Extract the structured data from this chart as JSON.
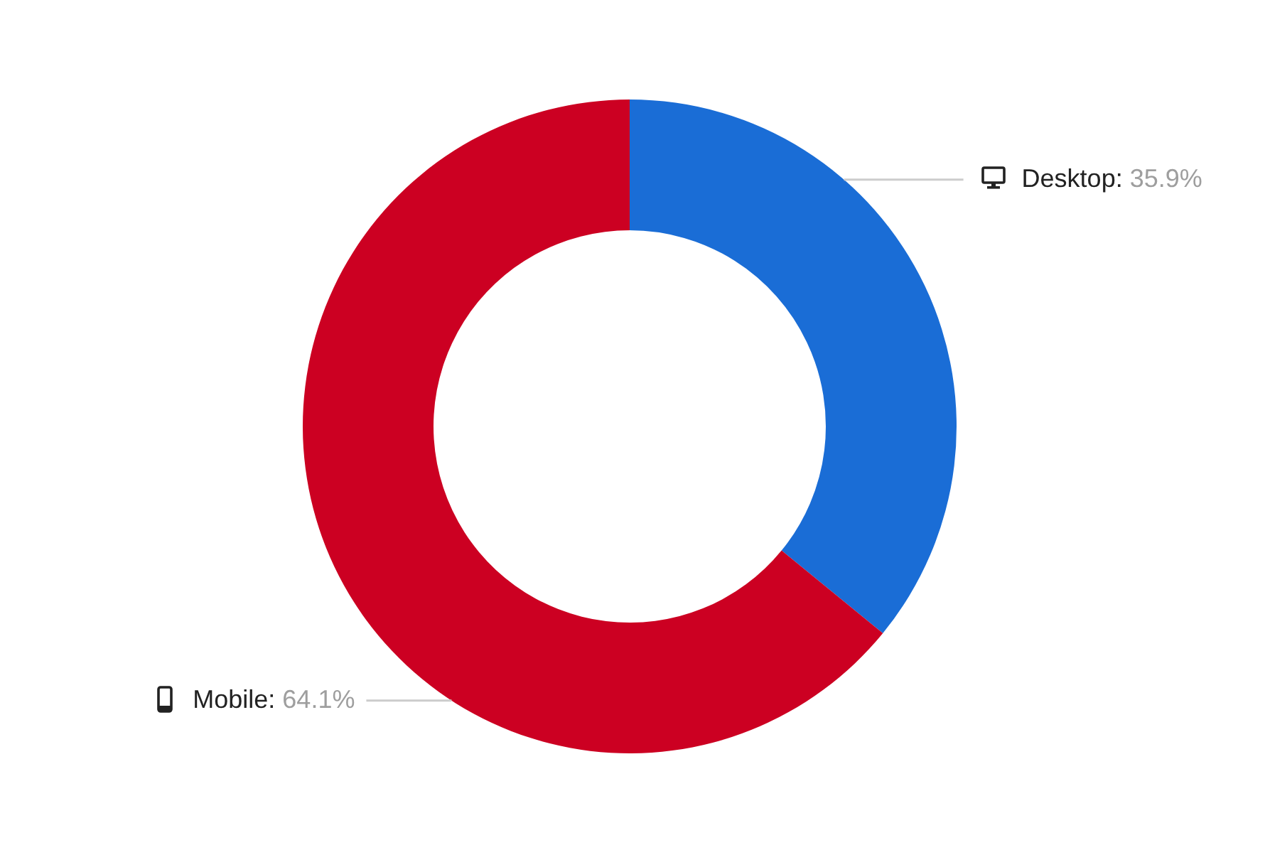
{
  "chart_data": {
    "type": "donut",
    "categories": [
      "Desktop",
      "Mobile"
    ],
    "values": [
      35.9,
      64.1
    ],
    "colors": [
      "#1a6dd6",
      "#cc0022"
    ],
    "value_labels": [
      "35.9%",
      "64.1%"
    ],
    "legend": false
  }
}
